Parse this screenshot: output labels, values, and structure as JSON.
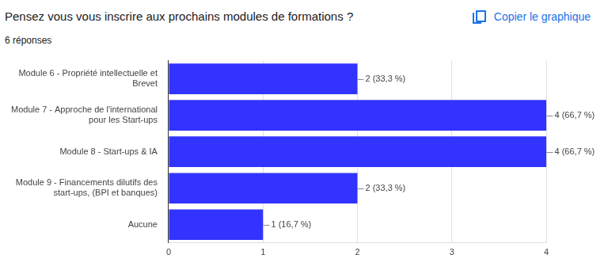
{
  "chart_data": {
    "type": "bar",
    "orientation": "horizontal",
    "title": "Pensez vous vous inscrire aux prochains modules de formations ?",
    "subtitle": "6 réponses",
    "categories": [
      "Module 6 - Propriété intellectuelle et Brevet",
      "Module 7 - Approche de l'international pour les Start-ups",
      "Module 8 - Start-ups & IA",
      "Module 9 - Financements dilutifs des start-ups, (BPI et banques)",
      "Aucune"
    ],
    "values": [
      2,
      4,
      4,
      2,
      1
    ],
    "value_labels": [
      "2 (33,3 %)",
      "4 (66,7 %)",
      "4 (66,7 %)",
      "2 (33,3 %)",
      "1 (16,7 %)"
    ],
    "data_labels": true,
    "color": "#3333ff",
    "xlim": [
      0,
      4
    ],
    "xticks": [
      0,
      1,
      2,
      3,
      4
    ],
    "grid": true
  },
  "toolbar": {
    "button": "Copier le graphique"
  }
}
